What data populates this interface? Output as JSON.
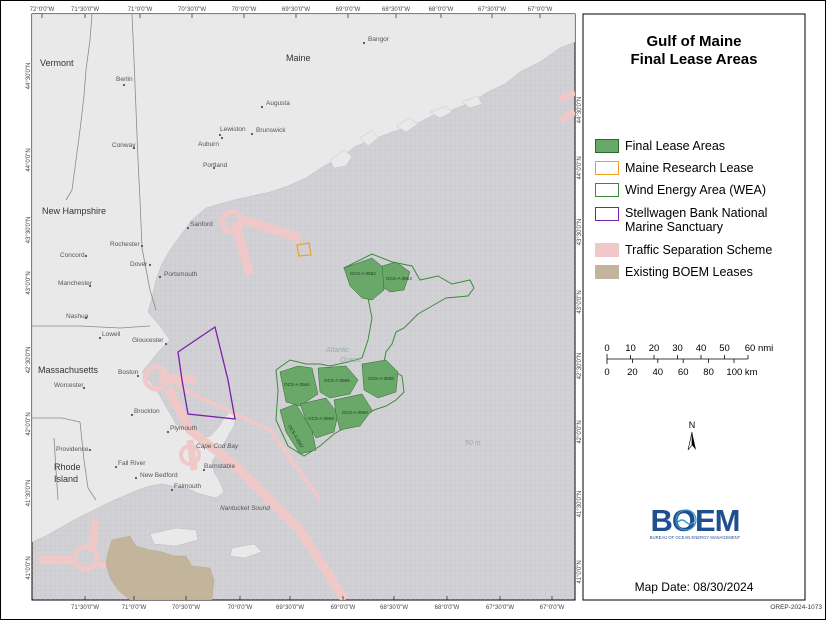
{
  "title_line1": "Gulf of Maine",
  "title_line2": "Final Lease Areas",
  "legend": [
    {
      "label": "Final Lease Areas",
      "fill": "#6aa86a",
      "stroke": "#2d6a2d"
    },
    {
      "label": "Maine Research Lease",
      "fill": "none",
      "stroke": "#f0a020"
    },
    {
      "label": "Wind Energy Area (WEA)",
      "fill": "none",
      "stroke": "#3c8a3c"
    },
    {
      "label": "Stellwagen Bank National",
      "label2": "Marine Sanctuary",
      "fill": "none",
      "stroke": "#7a1fa8"
    },
    {
      "label": "Traffic Separation Scheme",
      "fill": "#f0c8c8",
      "stroke": "#f0c8c8"
    },
    {
      "label": "Existing BOEM Leases",
      "fill": "#c2b59c",
      "stroke": "#c2b59c"
    }
  ],
  "scale": {
    "nmi_ticks": [
      "0",
      "10",
      "20",
      "30",
      "40",
      "50",
      "60 nmi"
    ],
    "km_ticks": [
      "0",
      "20",
      "40",
      "60",
      "80",
      "100 km"
    ]
  },
  "north_label": "N",
  "logo": {
    "text": "BOEM",
    "subtitle": "BUREAU OF OCEAN ENERGY MANAGEMENT"
  },
  "map_date": "Map Date: 08/30/2024",
  "doc_id": "OREP-2024-1073",
  "lon_ticks": [
    "72°0'0\"W",
    "71°30'0\"W",
    "71°0'0\"W",
    "70°30'0\"W",
    "70°0'0\"W",
    "69°30'0\"W",
    "69°0'0\"W",
    "68°30'0\"W",
    "68°0'0\"W",
    "67°30'0\"W",
    "67°0'0\"W"
  ],
  "lat_ticks": [
    "44°30'0\"N",
    "44°0'0\"N",
    "43°30'0\"N",
    "43°0'0\"N",
    "42°30'0\"N",
    "42°0'0\"N",
    "41°30'0\"N",
    "41°0'0\"N"
  ],
  "states": [
    "Vermont",
    "Maine",
    "New Hampshire",
    "Massachusetts",
    "Rhode",
    "Island"
  ],
  "places": [
    "Bangor",
    "Berlin",
    "Augusta",
    "Lewiston",
    "Auburn",
    "Brunswick",
    "Conway",
    "Portland",
    "Sanford",
    "Concord",
    "Rochester",
    "Dover",
    "Portsmouth",
    "Manchester",
    "Nashua",
    "Lowell",
    "Gloucester",
    "Boston",
    "Worcester",
    "Brockton",
    "Plymouth",
    "Providence",
    "Fall River",
    "New Bedford",
    "Barnstable",
    "Falmouth",
    "Cape Cod Bay",
    "Nantucket Sound"
  ],
  "sea_labels": [
    "Atlantic",
    "Ocean",
    "50 m"
  ],
  "lease_labels": [
    "OCS-A 0562",
    "OCS-A 0563",
    "OCS-A 0564",
    "OCS-A 0565",
    "OCS-A 0566",
    "OCS-A 0567",
    "OCS-A 0568",
    "OCS-A 0569"
  ]
}
